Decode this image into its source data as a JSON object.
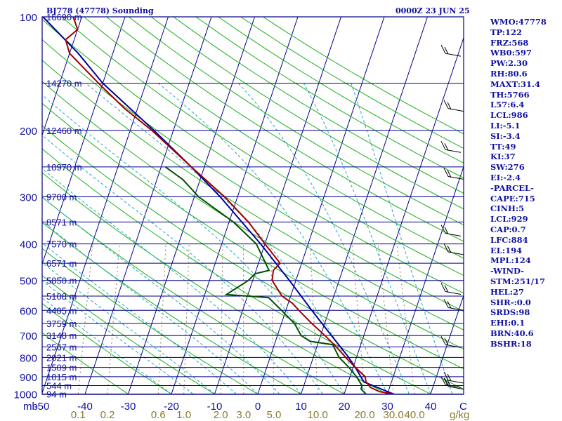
{
  "header": {
    "station": "BJ778 (47778) Sounding",
    "time": "0000Z 23 JUN 25"
  },
  "colors": {
    "frame": "#000080",
    "isobar": "#00008b",
    "isotherm": "#00008b",
    "dry_adiabat": "#1bb01b",
    "moist_adiabat": "#2aa7c8",
    "mixing_ratio": "#8a7b5e",
    "temperature": "#a00000",
    "dewpoint": "#005000",
    "parcel": "#0000a0",
    "axis_text": "#1010a0",
    "mixing_text": "#8b7a2b",
    "wind_barb": "#000000"
  },
  "indices": [
    "WMO:47778",
    "TP:122",
    "FRZ:568",
    "WB0:597",
    "PW:2.30",
    "RH:80.6",
    "MAXT:31.4",
    "TH:5766",
    "L57:6.4",
    "LCL:986",
    "LI:-5.1",
    "SI:-3.4",
    "TT:49",
    "KI:37",
    "SW:276",
    "EI:-2.4",
    "-PARCEL-",
    "CAPE:715",
    "CINH:5",
    "LCL:929",
    "CAP:0.7",
    "LFC:884",
    "EL:194",
    "MPL:124",
    "-WIND-",
    "STM:251/17",
    "HEL:27",
    "SHR-:0.0",
    "SRDS:98",
    "EHI:0.1",
    "BRN:40.6",
    "BSHR:18"
  ],
  "chart_data": {
    "type": "skew-t",
    "x_unit_label": "C",
    "pressure_unit_label": "mb",
    "mixing_ratio_unit_label": "g/kg",
    "pressure_ticks": [
      "100",
      "200",
      "300",
      "400",
      "500",
      "600",
      "700",
      "800",
      "900",
      "1000"
    ],
    "temperature_ticks": [
      "-50",
      "-40",
      "-30",
      "-20",
      "-10",
      "0",
      "10",
      "20",
      "30",
      "40"
    ],
    "mixing_ratio_ticks": [
      "0.1",
      "0.2",
      "0.6",
      "1.0",
      "2.0",
      "3.0",
      "5.0",
      "10.0",
      "20.0",
      "30.0",
      "40.0"
    ],
    "height_labels": [
      {
        "p": 100,
        "text": "16690 m"
      },
      {
        "p": 150,
        "text": "14270 m"
      },
      {
        "p": 200,
        "text": "12460 m"
      },
      {
        "p": 250,
        "text": "10970 m"
      },
      {
        "p": 300,
        "text": "9700 m"
      },
      {
        "p": 350,
        "text": "8571 m"
      },
      {
        "p": 400,
        "text": "7570 m"
      },
      {
        "p": 450,
        "text": "6571 m"
      },
      {
        "p": 500,
        "text": "5850 m"
      },
      {
        "p": 550,
        "text": "5108 m"
      },
      {
        "p": 600,
        "text": "4405 m"
      },
      {
        "p": 650,
        "text": "3759 m"
      },
      {
        "p": 700,
        "text": "3148 m"
      },
      {
        "p": 750,
        "text": "2567 m"
      },
      {
        "p": 800,
        "text": "2021 m"
      },
      {
        "p": 850,
        "text": "1509 m"
      },
      {
        "p": 900,
        "text": "1015 m"
      },
      {
        "p": 950,
        "text": "544 m"
      },
      {
        "p": 1000,
        "text": "94 m"
      }
    ],
    "temperature_profile": [
      {
        "p": 1000,
        "t": 31.4
      },
      {
        "p": 986,
        "t": 28
      },
      {
        "p": 960,
        "t": 25.5
      },
      {
        "p": 925,
        "t": 24
      },
      {
        "p": 900,
        "t": 23.5
      },
      {
        "p": 850,
        "t": 20.5
      },
      {
        "p": 800,
        "t": 17.5
      },
      {
        "p": 750,
        "t": 14.5
      },
      {
        "p": 700,
        "t": 11
      },
      {
        "p": 650,
        "t": 7
      },
      {
        "p": 600,
        "t": 3
      },
      {
        "p": 575,
        "t": 1
      },
      {
        "p": 550,
        "t": -2
      },
      {
        "p": 500,
        "t": -5.5
      },
      {
        "p": 470,
        "t": -6
      },
      {
        "p": 450,
        "t": -5
      },
      {
        "p": 400,
        "t": -10
      },
      {
        "p": 350,
        "t": -15.5
      },
      {
        "p": 300,
        "t": -23
      },
      {
        "p": 250,
        "t": -33
      },
      {
        "p": 200,
        "t": -45
      },
      {
        "p": 175,
        "t": -53
      },
      {
        "p": 150,
        "t": -61
      },
      {
        "p": 125,
        "t": -70
      },
      {
        "p": 115,
        "t": -72
      },
      {
        "p": 108,
        "t": -70
      },
      {
        "p": 100,
        "t": -72
      }
    ],
    "dewpoint_profile": [
      {
        "p": 1000,
        "d": 25
      },
      {
        "p": 970,
        "d": 23.5
      },
      {
        "p": 950,
        "d": 23.5
      },
      {
        "p": 925,
        "d": 22.5
      },
      {
        "p": 900,
        "d": 21.5
      },
      {
        "p": 850,
        "d": 19
      },
      {
        "p": 800,
        "d": 16
      },
      {
        "p": 740,
        "d": 13.5
      },
      {
        "p": 725,
        "d": 8
      },
      {
        "p": 700,
        "d": 5.5
      },
      {
        "p": 650,
        "d": 3
      },
      {
        "p": 600,
        "d": -1
      },
      {
        "p": 555,
        "d": -5
      },
      {
        "p": 545,
        "d": -15
      },
      {
        "p": 500,
        "d": -11
      },
      {
        "p": 480,
        "d": -10
      },
      {
        "p": 470,
        "d": -7
      },
      {
        "p": 400,
        "d": -12
      },
      {
        "p": 350,
        "d": -19
      },
      {
        "p": 300,
        "d": -29
      },
      {
        "p": 270,
        "d": -34
      },
      {
        "p": 250,
        "d": -39
      }
    ],
    "parcel_profile": [
      {
        "p": 1000,
        "t": 31.4
      },
      {
        "p": 929,
        "t": 23.6
      },
      {
        "p": 900,
        "t": 22.5
      },
      {
        "p": 850,
        "t": 20.5
      },
      {
        "p": 800,
        "t": 18.2
      },
      {
        "p": 700,
        "t": 12.5
      },
      {
        "p": 600,
        "t": 6
      },
      {
        "p": 500,
        "t": -1.5
      },
      {
        "p": 400,
        "t": -11
      },
      {
        "p": 300,
        "t": -24
      },
      {
        "p": 250,
        "t": -33
      },
      {
        "p": 200,
        "t": -44.5
      },
      {
        "p": 150,
        "t": -60
      },
      {
        "p": 125,
        "t": -68
      },
      {
        "p": 100,
        "t": -79
      }
    ]
  }
}
